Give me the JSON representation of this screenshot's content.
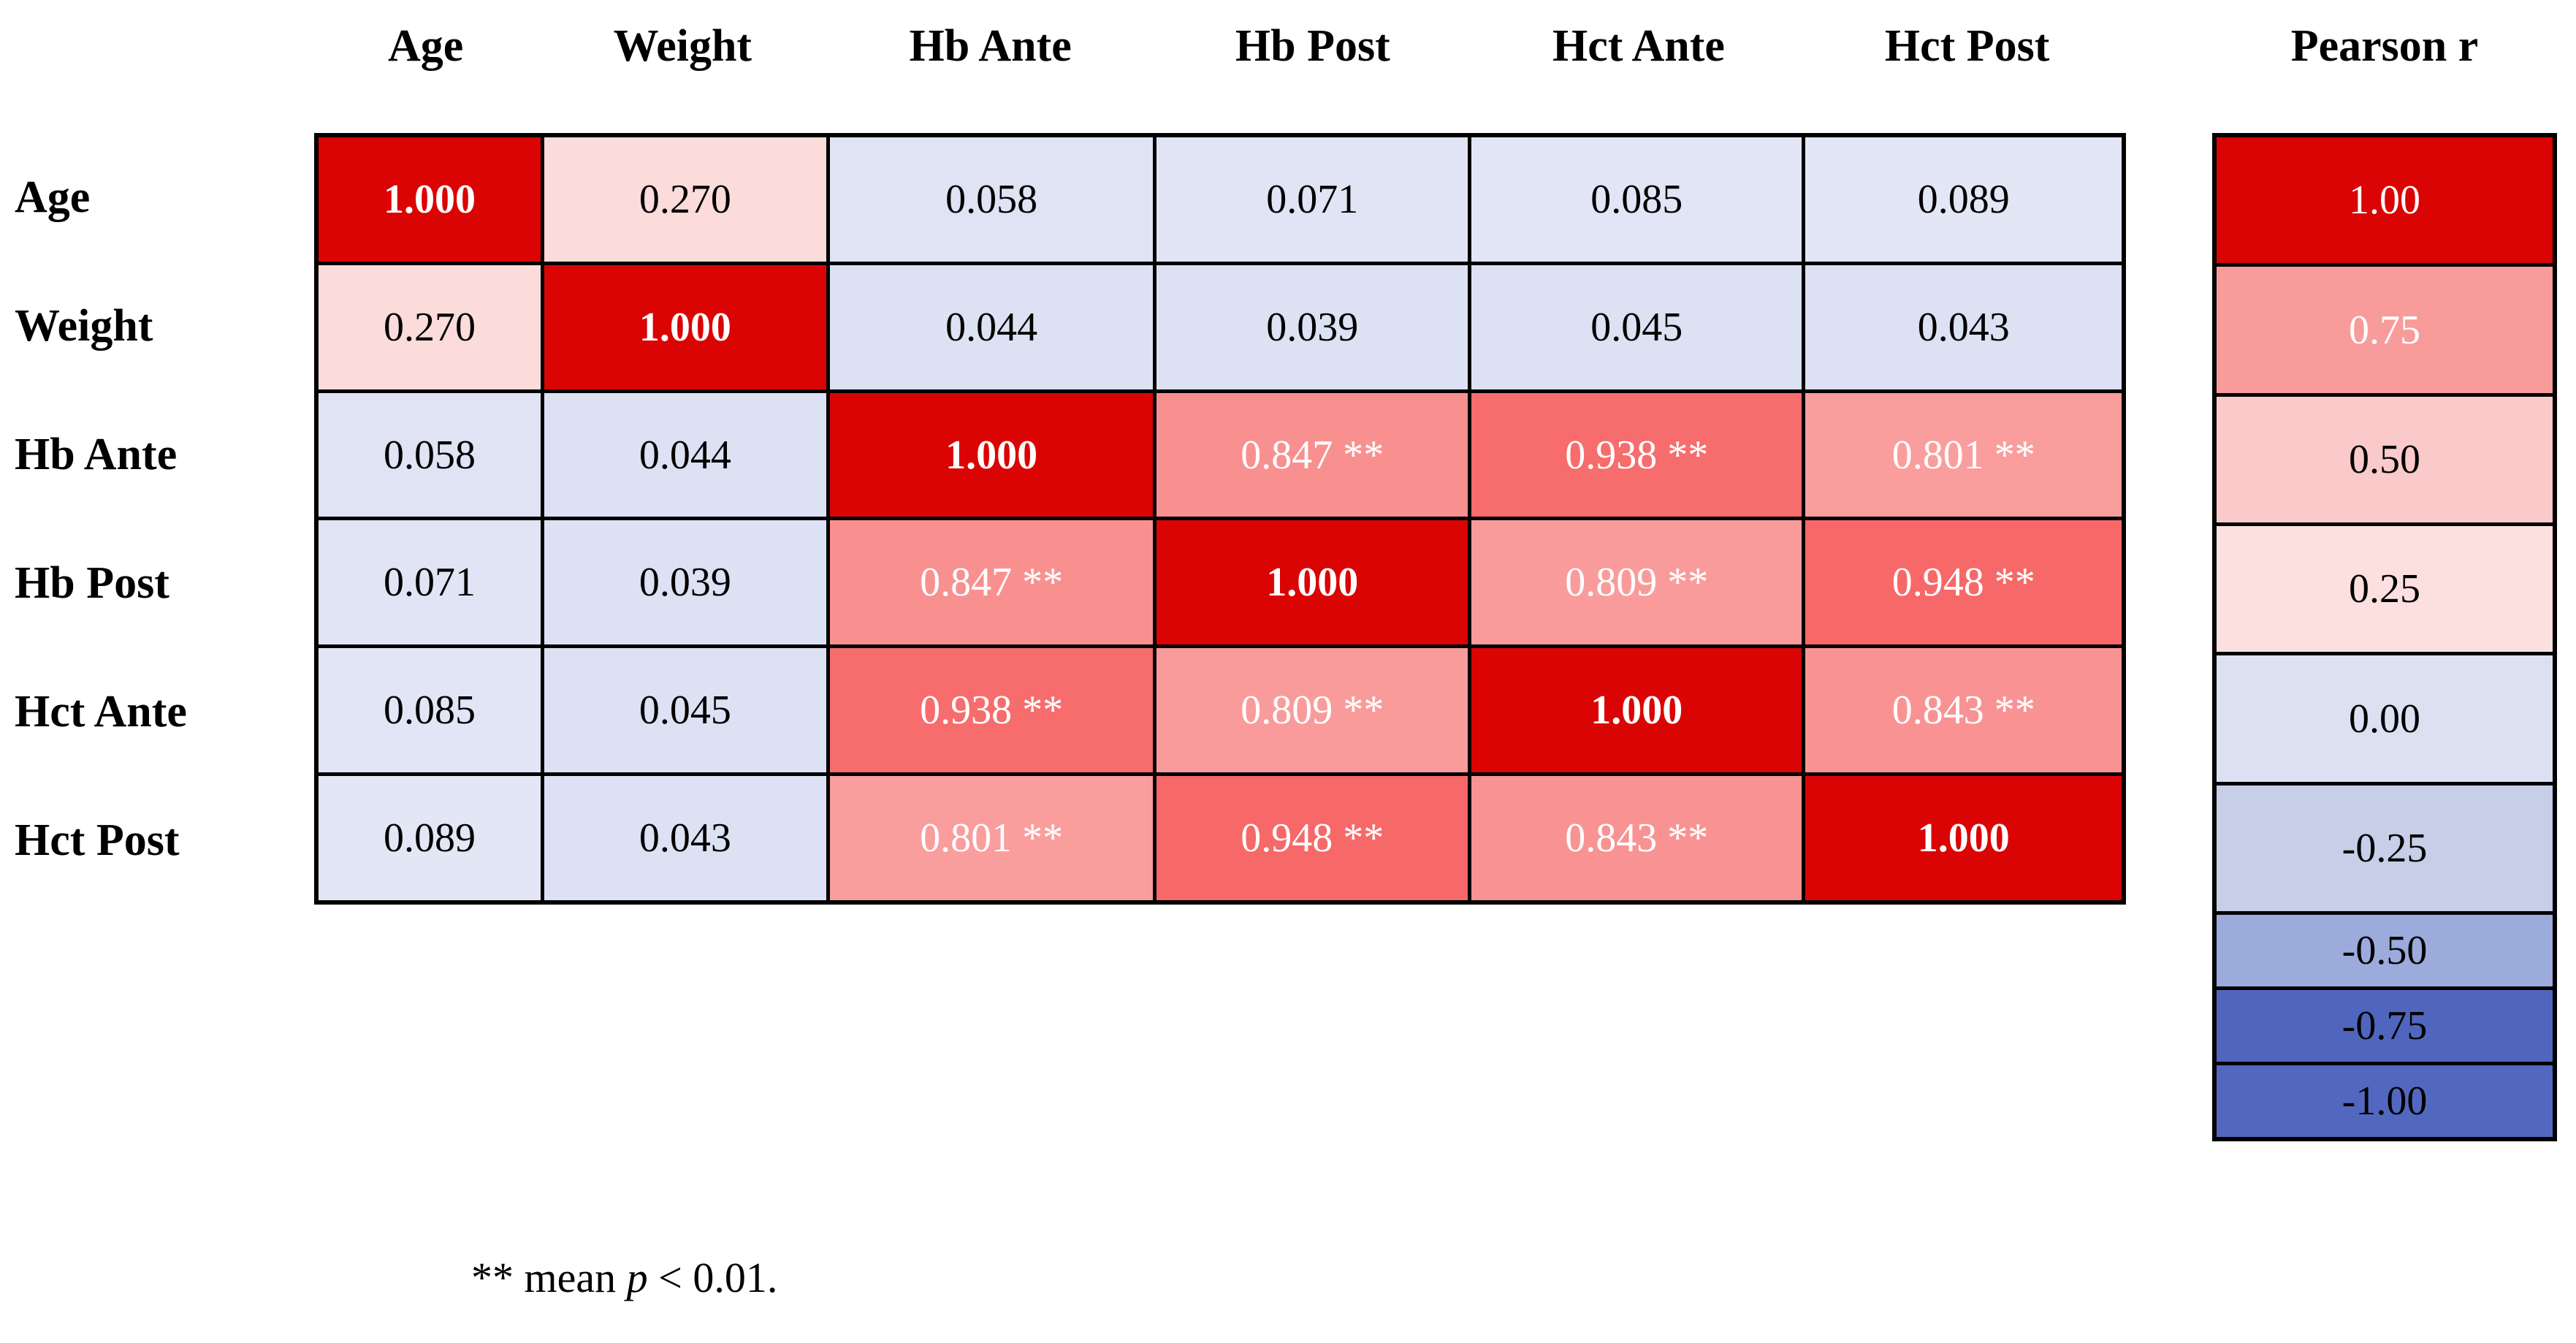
{
  "chart_data": {
    "type": "heatmap",
    "title": "",
    "legend_title": "Pearson r",
    "variables": [
      "Age",
      "Weight",
      "Hb Ante",
      "Hb Post",
      "Hct Ante",
      "Hct Post"
    ],
    "matrix_values": [
      [
        1.0,
        0.27,
        0.058,
        0.071,
        0.085,
        0.089
      ],
      [
        0.27,
        1.0,
        0.044,
        0.039,
        0.045,
        0.043
      ],
      [
        0.058,
        0.044,
        1.0,
        0.847,
        0.938,
        0.801
      ],
      [
        0.071,
        0.039,
        0.847,
        1.0,
        0.809,
        0.948
      ],
      [
        0.085,
        0.045,
        0.938,
        0.809,
        1.0,
        0.843
      ],
      [
        0.089,
        0.043,
        0.801,
        0.948,
        0.843,
        1.0
      ]
    ],
    "significance_marker": "**",
    "significance_note": "** mean p < 0.01.",
    "color_range": [
      -1.0,
      1.0
    ],
    "legend_ticks": [
      1.0,
      0.75,
      0.5,
      0.25,
      0.0,
      -0.25,
      -0.5,
      -0.75,
      -1.0
    ],
    "legend_position": "right",
    "grid": true
  },
  "matrix": {
    "col_headers": [
      "Age",
      "Weight",
      "Hb Ante",
      "Hb Post",
      "Hct Ante",
      "Hct Post"
    ],
    "row_headers": [
      "Age",
      "Weight",
      "Hb Ante",
      "Hb Post",
      "Hct Ante",
      "Hct Post"
    ],
    "rows": [
      {
        "label": "Age",
        "cells": [
          {
            "text": "1.000",
            "bg": "#DB0404",
            "fg": "#FFFFFF",
            "bold": true
          },
          {
            "text": "0.270",
            "bg": "#FBDCDB",
            "fg": "#000000",
            "bold": false
          },
          {
            "text": "0.058",
            "bg": "#DFE3F4",
            "fg": "#000000",
            "bold": false
          },
          {
            "text": "0.071",
            "bg": "#E0E4F4",
            "fg": "#000000",
            "bold": false
          },
          {
            "text": "0.085",
            "bg": "#E2E5F5",
            "fg": "#000000",
            "bold": false
          },
          {
            "text": "0.089",
            "bg": "#E3E6F5",
            "fg": "#000000",
            "bold": false
          }
        ]
      },
      {
        "label": "Weight",
        "cells": [
          {
            "text": "0.270",
            "bg": "#FBDCDB",
            "fg": "#000000",
            "bold": false
          },
          {
            "text": "1.000",
            "bg": "#DB0404",
            "fg": "#FFFFFF",
            "bold": true
          },
          {
            "text": "0.044",
            "bg": "#DCE1F3",
            "fg": "#000000",
            "bold": false
          },
          {
            "text": "0.039",
            "bg": "#DCE1F3",
            "fg": "#000000",
            "bold": false
          },
          {
            "text": "0.045",
            "bg": "#DCE1F3",
            "fg": "#000000",
            "bold": false
          },
          {
            "text": "0.043",
            "bg": "#DCE1F3",
            "fg": "#000000",
            "bold": false
          }
        ]
      },
      {
        "label": "Hb Ante",
        "cells": [
          {
            "text": "0.058",
            "bg": "#DFE3F4",
            "fg": "#000000",
            "bold": false
          },
          {
            "text": "0.044",
            "bg": "#DCE1F3",
            "fg": "#000000",
            "bold": false
          },
          {
            "text": "1.000",
            "bg": "#DB0404",
            "fg": "#FFFFFF",
            "bold": true
          },
          {
            "text": "0.847 **",
            "bg": "#F99090",
            "fg": "#FFFFFF",
            "bold": false
          },
          {
            "text": "0.938 **",
            "bg": "#F76C6C",
            "fg": "#FFFFFF",
            "bold": false
          },
          {
            "text": "0.801 **",
            "bg": "#FA9D9D",
            "fg": "#FFFFFF",
            "bold": false
          }
        ]
      },
      {
        "label": "Hb Post",
        "cells": [
          {
            "text": "0.071",
            "bg": "#E0E4F4",
            "fg": "#000000",
            "bold": false
          },
          {
            "text": "0.039",
            "bg": "#DCE1F3",
            "fg": "#000000",
            "bold": false
          },
          {
            "text": "0.847 **",
            "bg": "#F99090",
            "fg": "#FFFFFF",
            "bold": false
          },
          {
            "text": "1.000",
            "bg": "#DB0404",
            "fg": "#FFFFFF",
            "bold": true
          },
          {
            "text": "0.809 **",
            "bg": "#FA9B9B",
            "fg": "#FFFFFF",
            "bold": false
          },
          {
            "text": "0.948 **",
            "bg": "#F76868",
            "fg": "#FFFFFF",
            "bold": false
          }
        ]
      },
      {
        "label": "Hct Ante",
        "cells": [
          {
            "text": "0.085",
            "bg": "#E2E5F5",
            "fg": "#000000",
            "bold": false
          },
          {
            "text": "0.045",
            "bg": "#DCE1F3",
            "fg": "#000000",
            "bold": false
          },
          {
            "text": "0.938 **",
            "bg": "#F76C6C",
            "fg": "#FFFFFF",
            "bold": false
          },
          {
            "text": "0.809 **",
            "bg": "#FA9B9B",
            "fg": "#FFFFFF",
            "bold": false
          },
          {
            "text": "1.000",
            "bg": "#DB0404",
            "fg": "#FFFFFF",
            "bold": true
          },
          {
            "text": "0.843 **",
            "bg": "#F99393",
            "fg": "#FFFFFF",
            "bold": false
          }
        ]
      },
      {
        "label": "Hct Post",
        "cells": [
          {
            "text": "0.089",
            "bg": "#E3E6F5",
            "fg": "#000000",
            "bold": false
          },
          {
            "text": "0.043",
            "bg": "#DCE1F3",
            "fg": "#000000",
            "bold": false
          },
          {
            "text": "0.801 **",
            "bg": "#FA9D9D",
            "fg": "#FFFFFF",
            "bold": false
          },
          {
            "text": "0.948 **",
            "bg": "#F76868",
            "fg": "#FFFFFF",
            "bold": false
          },
          {
            "text": "0.843 **",
            "bg": "#F99393",
            "fg": "#FFFFFF",
            "bold": false
          },
          {
            "text": "1.000",
            "bg": "#DB0404",
            "fg": "#FFFFFF",
            "bold": true
          }
        ]
      }
    ]
  },
  "legend": {
    "title": "Pearson r",
    "entries": [
      {
        "label": "1.00",
        "bg": "#DB0404",
        "fg": "#FFFFFF"
      },
      {
        "label": "0.75",
        "bg": "#F89B9B",
        "fg": "#FFFFFF"
      },
      {
        "label": "0.50",
        "bg": "#FACACA",
        "fg": "#000000"
      },
      {
        "label": "0.25",
        "bg": "#FCE0E0",
        "fg": "#000000"
      },
      {
        "label": "0.00",
        "bg": "#DCE1F2",
        "fg": "#000000"
      },
      {
        "label": "-0.25",
        "bg": "#C6CEE8",
        "fg": "#000000"
      },
      {
        "label": "-0.50",
        "bg": "#9BABDB",
        "fg": "#000000"
      },
      {
        "label": "-0.75",
        "bg": "#5066BE",
        "fg": "#000000"
      },
      {
        "label": "-1.00",
        "bg": "#5268C0",
        "fg": "#000000"
      }
    ]
  },
  "footnote": {
    "stars": "**",
    "before_p": " mean ",
    "p_symbol": "p",
    "after_p": " < 0.01."
  }
}
